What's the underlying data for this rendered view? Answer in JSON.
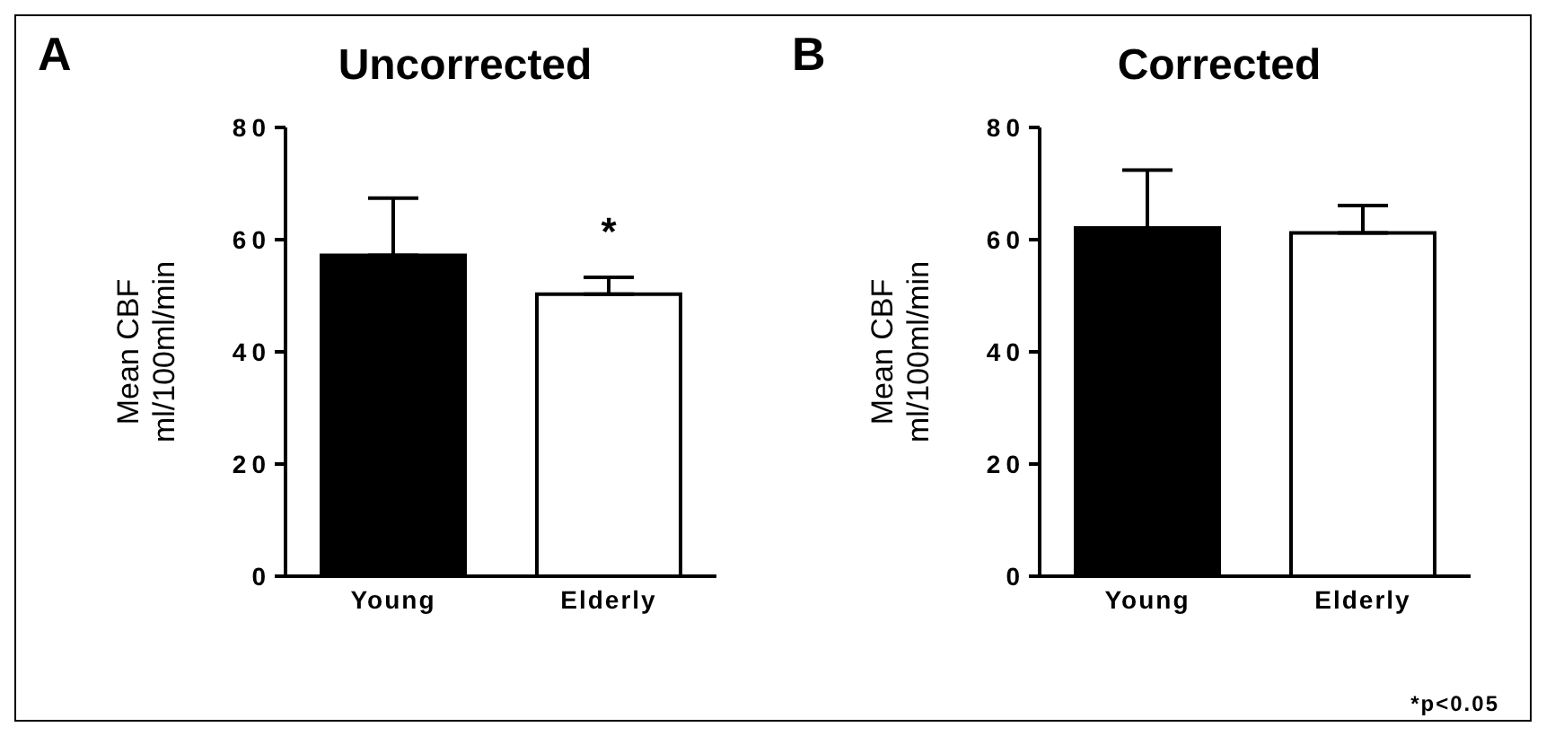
{
  "chart_data": [
    {
      "type": "bar",
      "title": "Uncorrected",
      "ylabel": "Mean CBF\nml/100ml/min",
      "categories": [
        "Young",
        "Elderly"
      ],
      "values": [
        57.2,
        50.3
      ],
      "colors": [
        "#000000",
        "#ffffff"
      ],
      "errors": [
        [
          57.2,
          67.4
        ],
        [
          50.3,
          53.3
        ]
      ],
      "ylim": [
        0,
        80
      ],
      "yticks": [
        0,
        20,
        40,
        60,
        80
      ],
      "annotations": [
        "A",
        "*"
      ]
    },
    {
      "type": "bar",
      "title": "Corrected",
      "ylabel": "Mean CBF\nml/100ml/min",
      "categories": [
        "Young",
        "Elderly"
      ],
      "values": [
        62.1,
        61.2
      ],
      "colors": [
        "#000000",
        "#ffffff"
      ],
      "errors": [
        [
          62.1,
          72.4
        ],
        [
          61.2,
          66.1
        ]
      ],
      "ylim": [
        0,
        80
      ],
      "yticks": [
        0,
        20,
        40,
        60,
        80
      ],
      "annotations": [
        "B",
        "*p<0.05"
      ]
    }
  ]
}
